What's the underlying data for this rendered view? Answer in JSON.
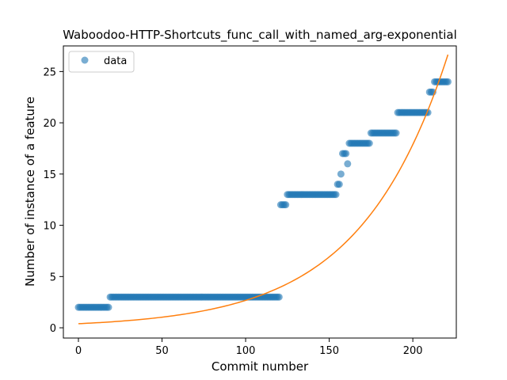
{
  "chart_data": {
    "type": "scatter",
    "title": "Waboodoo-HTTP-Shortcuts_func_call_with_named_arg-exponential",
    "xlabel": "Commit number",
    "ylabel": "Number of instance of a feature",
    "xlim": [
      -9,
      226
    ],
    "ylim": [
      -1,
      27.5
    ],
    "xticks": [
      0,
      50,
      100,
      150,
      200
    ],
    "yticks": [
      0,
      5,
      10,
      15,
      20,
      25
    ],
    "grid": false,
    "legend": {
      "position": "top-left",
      "entries": [
        "data"
      ]
    },
    "colors": {
      "data": "#1f77b4",
      "fit": "#ff7f0e"
    },
    "segments": [
      {
        "x_start": 0,
        "x_end": 18,
        "y": 2
      },
      {
        "x_start": 19,
        "x_end": 120,
        "y": 3
      },
      {
        "x_start": 121,
        "x_end": 124,
        "y": 12
      },
      {
        "x_start": 125,
        "x_end": 154,
        "y": 13
      },
      {
        "x_start": 155,
        "x_end": 156,
        "y": 14
      },
      {
        "x_start": 157,
        "x_end": 157,
        "y": 15
      },
      {
        "x_start": 158,
        "x_end": 160,
        "y": 17
      },
      {
        "x_start": 161,
        "x_end": 161,
        "y": 16
      },
      {
        "x_start": 162,
        "x_end": 174,
        "y": 18
      },
      {
        "x_start": 175,
        "x_end": 190,
        "y": 19
      },
      {
        "x_start": 191,
        "x_end": 209,
        "y": 21
      },
      {
        "x_start": 210,
        "x_end": 212,
        "y": 23
      },
      {
        "x_start": 213,
        "x_end": 221,
        "y": 24
      }
    ],
    "series": [
      {
        "name": "data",
        "kind": "points"
      },
      {
        "kind": "line",
        "model": "exponential",
        "a": 0.4,
        "b": 0.019,
        "x_start": 0,
        "x_end": 221
      }
    ]
  }
}
